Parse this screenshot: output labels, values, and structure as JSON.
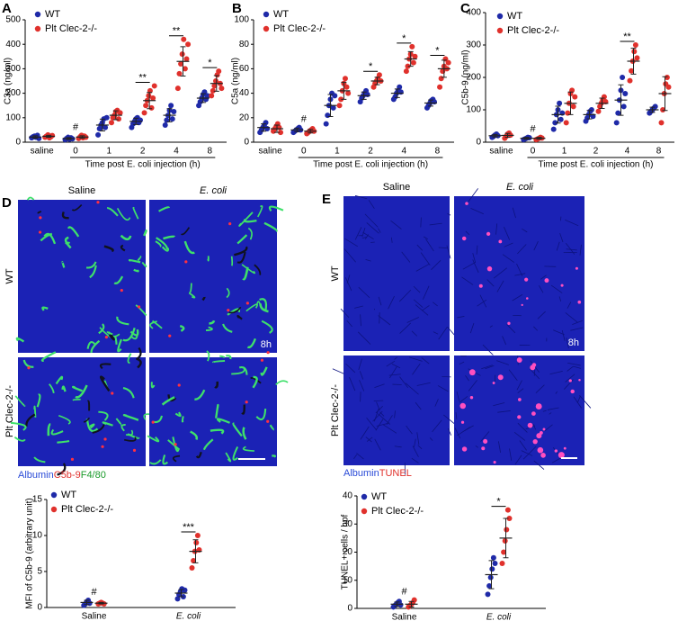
{
  "chart_data": [
    {
      "type": "dotplot",
      "label": "A",
      "ylabel": "C3a (ng/ml)",
      "xlabel": "Time post E. coli injection (h)",
      "categories": [
        "saline",
        "0",
        "1",
        "2",
        "4",
        "8"
      ],
      "ylim": [
        0,
        500
      ],
      "yticks": [
        0,
        100,
        200,
        300,
        400,
        500
      ],
      "series": [
        {
          "name": "WT",
          "color": "#1f2aa8",
          "values": [
            21,
            15,
            70,
            85,
            110,
            180
          ],
          "errors": [
            5,
            4,
            24,
            13,
            27,
            18
          ],
          "points": [
            [
              18,
              22,
              25,
              20,
              28,
              15
            ],
            [
              10,
              15,
              20,
              12,
              18,
              14
            ],
            [
              30,
              55,
              70,
              80,
              95,
              60,
              100
            ],
            [
              60,
              75,
              85,
              95,
              100,
              80,
              90
            ],
            [
              70,
              90,
              110,
              130,
              150,
              95,
              125
            ],
            [
              150,
              165,
              180,
              195,
              205,
              175,
              190
            ]
          ]
        },
        {
          "name": "Plt Clec-2-/-",
          "color": "#e0312c",
          "values": [
            24,
            21,
            110,
            170,
            330,
            240
          ],
          "errors": [
            4,
            5,
            18,
            33,
            60,
            32
          ],
          "points": [
            [
              20,
              25,
              30,
              18,
              22,
              27
            ],
            [
              15,
              22,
              28,
              18,
              25,
              20
            ],
            [
              80,
              100,
              110,
              125,
              130,
              95,
              120
            ],
            [
              120,
              150,
              170,
              190,
              210,
              140,
              180,
              230
            ],
            [
              220,
              280,
              320,
              360,
              420,
              300,
              340,
              400
            ],
            [
              190,
              210,
              230,
              250,
              275,
              290,
              240,
              220
            ]
          ]
        }
      ],
      "annotations": [
        {
          "text": "#",
          "category": 1
        },
        {
          "text": "**",
          "category": 3
        },
        {
          "text": "**",
          "category": 4
        },
        {
          "text": "*",
          "category": 5
        }
      ]
    },
    {
      "type": "dotplot",
      "label": "B",
      "ylabel": "C5a (ng/ml)",
      "xlabel": "Time post E. coli injection (h)",
      "categories": [
        "saline",
        "0",
        "1",
        "2",
        "4",
        "8"
      ],
      "ylim": [
        0,
        100
      ],
      "yticks": [
        0,
        20,
        40,
        60,
        80,
        100
      ],
      "series": [
        {
          "name": "WT",
          "color": "#1f2aa8",
          "values": [
            12,
            10,
            30,
            38,
            40,
            32
          ],
          "errors": [
            3,
            1.5,
            9,
            3,
            3.5,
            2.5
          ],
          "points": [
            [
              8,
              10,
              12,
              14,
              16,
              11
            ],
            [
              8,
              9,
              10,
              11,
              12,
              10
            ],
            [
              15,
              22,
              30,
              35,
              40,
              28,
              38
            ],
            [
              33,
              36,
              38,
              40,
              42,
              39
            ],
            [
              35,
              37,
              40,
              42,
              45,
              41
            ],
            [
              28,
              30,
              32,
              34,
              35,
              33
            ]
          ]
        },
        {
          "name": "Plt Clec-2-/-",
          "color": "#e0312c",
          "values": [
            11,
            9,
            42,
            50,
            68,
            60
          ],
          "errors": [
            3,
            1.5,
            7,
            3,
            6,
            7
          ],
          "points": [
            [
              9,
              11,
              13,
              15,
              12,
              8
            ],
            [
              7,
              8,
              9,
              10,
              11,
              9
            ],
            [
              30,
              35,
              42,
              48,
              52,
              45,
              40
            ],
            [
              45,
              48,
              50,
              52,
              55,
              50
            ],
            [
              58,
              62,
              68,
              72,
              78,
              65,
              70
            ],
            [
              45,
              52,
              58,
              62,
              68,
              60,
              65
            ]
          ]
        }
      ],
      "annotations": [
        {
          "text": "#",
          "category": 1
        },
        {
          "text": "*",
          "category": 3
        },
        {
          "text": "*",
          "category": 4
        },
        {
          "text": "*",
          "category": 5
        }
      ]
    },
    {
      "type": "dotplot",
      "label": "C",
      "ylabel": "C5b-9 (ng/ml)",
      "xlabel": "Time post E. coli injection (h)",
      "categories": [
        "saline",
        "0",
        "1",
        "2",
        "4",
        "8"
      ],
      "ylim": [
        0,
        400
      ],
      "yticks": [
        0,
        100,
        200,
        300,
        400
      ],
      "series": [
        {
          "name": "WT",
          "color": "#1f2aa8",
          "values": [
            20,
            12,
            85,
            85,
            130,
            100
          ],
          "errors": [
            4,
            3,
            26,
            13,
            47,
            8
          ],
          "points": [
            [
              15,
              18,
              22,
              25,
              20
            ],
            [
              8,
              10,
              12,
              15,
              14
            ],
            [
              40,
              60,
              85,
              100,
              120,
              70,
              90
            ],
            [
              65,
              75,
              85,
              95,
              100,
              80
            ],
            [
              60,
              90,
              130,
              160,
              200,
              110,
              150
            ],
            [
              90,
              95,
              100,
              105,
              110
            ]
          ]
        },
        {
          "name": "Plt Clec-2-/-",
          "color": "#e0312c",
          "values": [
            21,
            12,
            120,
            120,
            250,
            150
          ],
          "errors": [
            6,
            3,
            35,
            16,
            40,
            52
          ],
          "points": [
            [
              12,
              18,
              25,
              28,
              22
            ],
            [
              8,
              10,
              12,
              15,
              13
            ],
            [
              60,
              90,
              120,
              150,
              160,
              110,
              140
            ],
            [
              95,
              110,
              120,
              130,
              140,
              125
            ],
            [
              190,
              220,
              250,
              280,
              300,
              260
            ],
            [
              60,
              100,
              150,
              180,
              200,
              170
            ]
          ]
        }
      ],
      "annotations": [
        {
          "text": "#",
          "category": 1
        },
        {
          "text": "**",
          "category": 4
        }
      ]
    },
    {
      "type": "dotplot",
      "ylabel": "MFI of C5b-9 (arbitrary unit)",
      "categories": [
        "Saline",
        "E. coli"
      ],
      "ylim": [
        0,
        15
      ],
      "yticks": [
        0,
        5,
        10,
        15
      ],
      "series": [
        {
          "name": "WT",
          "color": "#1f2aa8",
          "values": [
            0.7,
            2
          ],
          "errors": [
            0.3,
            0.5
          ],
          "points": [
            [
              0.3,
              0.5,
              0.8,
              1.0,
              0.6
            ],
            [
              1.2,
              1.8,
              2.2,
              2.6,
              1.5,
              2.4
            ]
          ]
        },
        {
          "name": "Plt Clec-2-/-",
          "color": "#e0312c",
          "values": [
            0.6,
            7.8
          ],
          "errors": [
            0.1,
            1.6
          ],
          "points": [
            [
              0.5,
              0.6,
              0.7,
              0.6,
              0.5
            ],
            [
              5.5,
              6.5,
              7.8,
              9,
              10,
              8
            ]
          ]
        }
      ],
      "annotations": [
        {
          "text": "#",
          "category": 0
        },
        {
          "text": "***",
          "category": 1
        }
      ]
    },
    {
      "type": "dotplot",
      "ylabel": "TUNEL+ cells / hpf",
      "categories": [
        "Saline",
        "E. coli"
      ],
      "ylim": [
        0,
        40
      ],
      "yticks": [
        0,
        10,
        20,
        30,
        40
      ],
      "series": [
        {
          "name": "WT",
          "color": "#1f2aa8",
          "values": [
            1.5,
            12
          ],
          "errors": [
            0.8,
            5
          ],
          "points": [
            [
              0.5,
              1,
              1.5,
              2,
              2.5,
              1.2
            ],
            [
              5,
              8,
              11,
              14,
              18,
              16
            ]
          ]
        },
        {
          "name": "Plt Clec-2-/-",
          "color": "#e0312c",
          "values": [
            1.5,
            25
          ],
          "errors": [
            1,
            7
          ],
          "points": [
            [
              0.5,
              1,
              1.5,
              2,
              3
            ],
            [
              16,
              20,
              24,
              28,
              35,
              32
            ]
          ]
        }
      ],
      "annotations": [
        {
          "text": "#",
          "category": 0
        },
        {
          "text": "*",
          "category": 1
        }
      ]
    }
  ],
  "figures": [
    {
      "label": "D",
      "columns": [
        "Saline",
        "E. coli"
      ],
      "rows": [
        "WT",
        "Plt Clec-2-/-"
      ],
      "time": "8h",
      "stain": [
        "Albumin",
        "C5b-9",
        "F4/80"
      ]
    },
    {
      "label": "E",
      "columns": [
        "Saline",
        "E. coli"
      ],
      "rows": [
        "WT",
        "Plt Clec-2-/-"
      ],
      "time": "8h",
      "stain": [
        "Albumin",
        "TUNEL"
      ]
    }
  ]
}
